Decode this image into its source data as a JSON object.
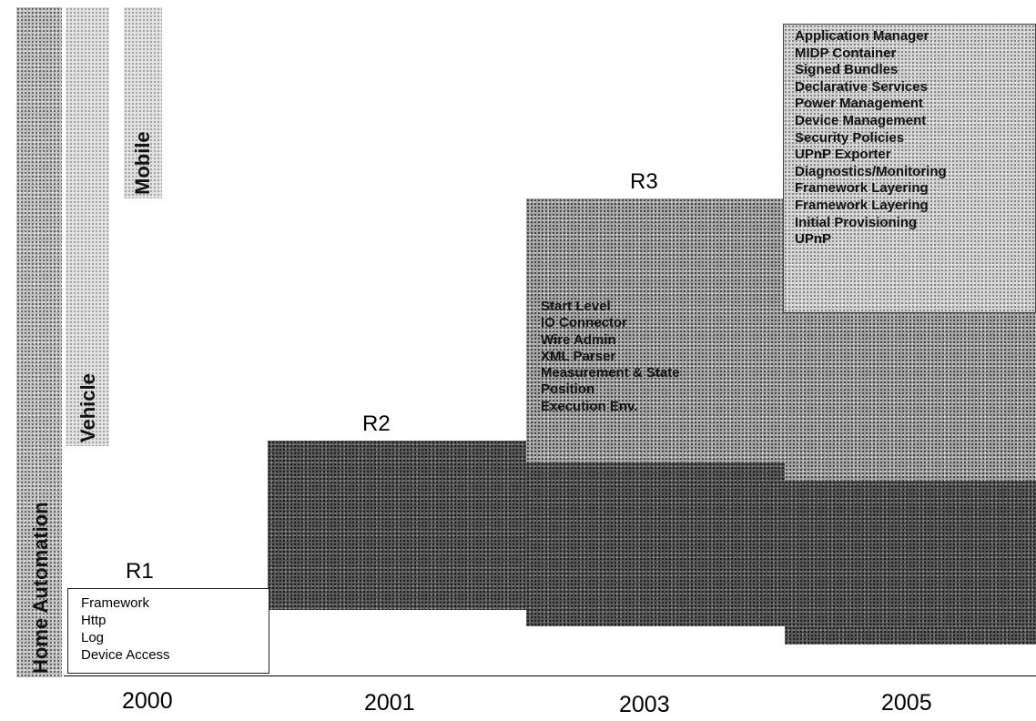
{
  "domains": {
    "home_automation": "Home Automation",
    "vehicle": "Vehicle",
    "mobile": "Mobile"
  },
  "releases": {
    "r1": {
      "label": "R1",
      "features": [
        "Framework",
        "Http",
        "Log",
        "Device Access"
      ]
    },
    "r2": {
      "label": "R2",
      "features": []
    },
    "r3": {
      "label": "R3",
      "features": [
        "Start Level",
        "IO Connector",
        "Wire Admin",
        "XML Parser",
        "Measurement & State",
        "Position",
        "Execution Env."
      ]
    },
    "r4": {
      "features": [
        "Application Manager",
        "MIDP Container",
        "Signed Bundles",
        "Declarative Services",
        "Power Management",
        "Device Management",
        "Security Policies",
        "UPnP Exporter",
        "Diagnostics/Monitoring",
        "Framework Layering",
        "Framework Layering",
        "Initial Provisioning",
        "UPnP"
      ]
    }
  },
  "years": [
    "2000",
    "2001",
    "2003",
    "2005"
  ]
}
